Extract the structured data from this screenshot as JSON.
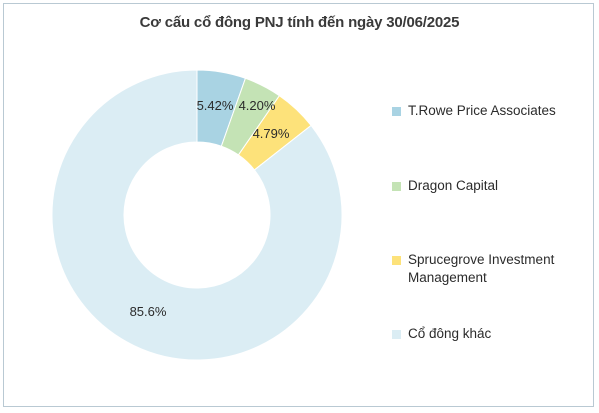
{
  "chart_data": {
    "type": "pie",
    "title": "Cơ cấu cổ đông PNJ tính đến ngày 30/06/2025",
    "donut": true,
    "legend_position": "right",
    "series": [
      {
        "name": "T.Rowe Price Associates",
        "value": 5.42,
        "label": "5.42%",
        "color": "#a9d3e3"
      },
      {
        "name": "Dragon Capital",
        "value": 4.2,
        "label": "4.20%",
        "color": "#c4e3b5"
      },
      {
        "name": "Sprucegrove Investment Management",
        "value": 4.79,
        "label": "4.79%",
        "color": "#fde27a"
      },
      {
        "name": "Cổ đông khác",
        "value": 85.6,
        "label": "85.6%",
        "color": "#dbedf4"
      }
    ]
  }
}
